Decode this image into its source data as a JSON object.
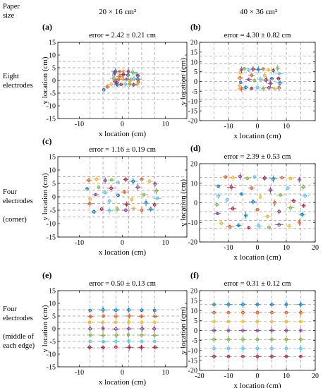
{
  "header": {
    "paper_size_label": [
      "Paper",
      "size"
    ],
    "col1": "20 × 16 cm²",
    "col2": "40 × 36 cm²"
  },
  "rows": [
    {
      "label": [
        "Eight",
        "electrodes"
      ]
    },
    {
      "label": [
        "Four",
        "electrodes",
        "",
        "(corner)"
      ]
    },
    {
      "label": [
        "Four",
        "electrodes",
        "",
        "(middle of",
        "each edge)"
      ]
    }
  ],
  "palette": [
    "#0072bd",
    "#d95319",
    "#edb120",
    "#7e2f8e",
    "#77ac30",
    "#4dbeee",
    "#a2142f"
  ],
  "chart_data": [
    {
      "type": "scatter",
      "panel": "(a)",
      "title": "error = 2.42 ± 0.21 cm",
      "xlabel": "x location (cm)",
      "ylabel": "y location (cm)",
      "xlim": [
        -15,
        15
      ],
      "ylim": [
        -15,
        15
      ],
      "xticks": [
        -10,
        0,
        10
      ],
      "yticks": [
        -15,
        -10,
        -5,
        0,
        5,
        10,
        15
      ],
      "grid_x": [
        -7.5,
        -4.5,
        -1.5,
        1.5,
        4.5,
        7.5
      ],
      "grid_y": [
        -7.5,
        -5,
        -2.5,
        0,
        2.5,
        5,
        7.5
      ],
      "points": [
        [
          -4.3,
          -3.7
        ],
        [
          -3.5,
          -2.5
        ],
        [
          -2.6,
          -1.5
        ],
        [
          -1.7,
          -0.5
        ],
        [
          -2.0,
          0.8
        ],
        [
          -2.0,
          2.0
        ],
        [
          -1.8,
          3.0
        ],
        [
          -1.6,
          3.6
        ],
        [
          -0.6,
          3.4
        ],
        [
          0.3,
          3.6
        ],
        [
          1.4,
          3.5
        ],
        [
          2.4,
          3.2
        ],
        [
          3.3,
          2.8
        ],
        [
          3.6,
          1.8
        ],
        [
          3.6,
          0.5
        ],
        [
          3.7,
          -0.6
        ],
        [
          3.4,
          -1.5
        ],
        [
          2.6,
          -1.7
        ],
        [
          1.7,
          -1.4
        ],
        [
          0.7,
          -1.5
        ],
        [
          -0.3,
          -1.6
        ],
        [
          -1.2,
          -1.7
        ],
        [
          -0.9,
          0.4
        ],
        [
          0.1,
          0.6
        ],
        [
          1.0,
          0.5
        ],
        [
          2.0,
          0.3
        ],
        [
          2.7,
          0.8
        ],
        [
          0.2,
          2.3
        ],
        [
          1.3,
          2.1
        ],
        [
          -0.6,
          1.6
        ],
        [
          1.8,
          -0.3
        ],
        [
          -1.3,
          -0.9
        ]
      ]
    },
    {
      "type": "scatter",
      "panel": "(b)",
      "title": "error = 4.30 ± 0.82 cm",
      "xlabel": "x location (cm)",
      "ylabel": "y location (cm)",
      "xlim": [
        -20,
        20
      ],
      "ylim": [
        -20,
        20
      ],
      "xticks": [
        -10,
        0,
        10
      ],
      "yticks": [
        -20,
        -15,
        -10,
        -5,
        0,
        5,
        10,
        15,
        20
      ],
      "grid_x": [
        -15,
        -10,
        -5,
        0,
        5,
        10,
        15
      ],
      "grid_y": [
        -13,
        -9,
        -4.5,
        0,
        4.5,
        9,
        13
      ],
      "points": [
        [
          -5.8,
          -0.5
        ],
        [
          -6.0,
          1.8
        ],
        [
          -5.9,
          4.5
        ],
        [
          -5.5,
          6.0
        ],
        [
          -4.5,
          6.5
        ],
        [
          -3.0,
          5.8
        ],
        [
          -1.5,
          6.3
        ],
        [
          0.3,
          6.2
        ],
        [
          2.0,
          6.4
        ],
        [
          3.8,
          5.9
        ],
        [
          5.5,
          5.6
        ],
        [
          7.0,
          6.8
        ],
        [
          7.6,
          4.0
        ],
        [
          7.3,
          1.5
        ],
        [
          7.8,
          -0.8
        ],
        [
          7.5,
          -3.2
        ],
        [
          6.0,
          -3.6
        ],
        [
          4.0,
          -3.2
        ],
        [
          2.0,
          -3.6
        ],
        [
          0.0,
          -3.1
        ],
        [
          -2.0,
          -3.5
        ],
        [
          -4.0,
          -3.0
        ],
        [
          -5.5,
          -3.8
        ],
        [
          -6.2,
          -2.3
        ],
        [
          -3.0,
          1.0
        ],
        [
          -1.0,
          0.5
        ],
        [
          1.0,
          1.2
        ],
        [
          3.0,
          0.8
        ],
        [
          5.0,
          1.5
        ],
        [
          -2.0,
          3.2
        ],
        [
          2.5,
          3.0
        ],
        [
          4.5,
          -1.0
        ]
      ]
    },
    {
      "type": "scatter",
      "panel": "(c)",
      "title": "error = 1.16 ± 0.19 cm",
      "xlabel": "x location (cm)",
      "ylabel": "y location (cm)",
      "xlim": [
        -15,
        15
      ],
      "ylim": [
        -15,
        15
      ],
      "xticks": [
        -10,
        0,
        10
      ],
      "yticks": [
        -15,
        -10,
        -5,
        0,
        5,
        10,
        15
      ],
      "grid_x": [
        -7.5,
        -4.5,
        -1.5,
        1.5,
        4.5,
        7.5
      ],
      "grid_y": [
        -7.5,
        -5,
        -2.5,
        0,
        2.5,
        5,
        7.5
      ],
      "points": [
        [
          -8.2,
          3.0
        ],
        [
          -7.8,
          6.2
        ],
        [
          -6.0,
          6.6
        ],
        [
          -4.0,
          6.1
        ],
        [
          -2.5,
          6.3
        ],
        [
          -1.0,
          5.4
        ],
        [
          0.8,
          6.5
        ],
        [
          2.5,
          5.8
        ],
        [
          4.5,
          6.6
        ],
        [
          6.3,
          5.8
        ],
        [
          7.6,
          4.8
        ],
        [
          7.9,
          2.2
        ],
        [
          8.1,
          -0.6
        ],
        [
          7.5,
          -3.0
        ],
        [
          6.6,
          -4.6
        ],
        [
          4.5,
          -5.0
        ],
        [
          2.6,
          -4.3
        ],
        [
          0.8,
          -5.0
        ],
        [
          -1.2,
          -4.6
        ],
        [
          -3.0,
          -5.1
        ],
        [
          -4.8,
          -4.6
        ],
        [
          -6.6,
          -5.6
        ],
        [
          -7.6,
          -2.6
        ],
        [
          -7.5,
          -0.8
        ],
        [
          -6.2,
          0.8
        ],
        [
          -5.5,
          3.6
        ],
        [
          -4.0,
          1.6
        ],
        [
          -2.6,
          3.2
        ],
        [
          -1.0,
          0.6
        ],
        [
          0.5,
          1.8
        ],
        [
          2.2,
          -1.0
        ],
        [
          3.6,
          3.6
        ],
        [
          5.0,
          0.8
        ],
        [
          -3.0,
          -1.6
        ],
        [
          1.0,
          -2.8
        ],
        [
          5.5,
          -2.2
        ]
      ]
    },
    {
      "type": "scatter",
      "panel": "(d)",
      "title": "error = 2.39 ± 0.53 cm",
      "xlabel": "x location (cm)",
      "ylabel": "y location (cm)",
      "xlim": [
        -20,
        20
      ],
      "ylim": [
        -20,
        20
      ],
      "xticks": [
        -10,
        0,
        10,
        20
      ],
      "yticks": [
        -20,
        -10,
        0,
        10,
        20
      ],
      "grid_x": [
        -15,
        -10,
        -5,
        0,
        5,
        10,
        15
      ],
      "grid_y": [
        -13,
        -9,
        -4.5,
        0,
        4.5,
        9,
        13
      ],
      "points": [
        [
          -13.5,
          8.5
        ],
        [
          -11.0,
          13.2
        ],
        [
          -8.5,
          12.8
        ],
        [
          -6.0,
          13.5
        ],
        [
          -3.5,
          12.5
        ],
        [
          -1.0,
          13.2
        ],
        [
          2.5,
          12.6
        ],
        [
          5.5,
          12.2
        ],
        [
          8.5,
          12.8
        ],
        [
          11.5,
          12.4
        ],
        [
          14.5,
          11.8
        ],
        [
          15.8,
          8.0
        ],
        [
          16.5,
          3.5
        ],
        [
          16.0,
          -1.5
        ],
        [
          15.5,
          -6.0
        ],
        [
          14.5,
          -10.0
        ],
        [
          11.0,
          -11.8
        ],
        [
          7.5,
          -11.2
        ],
        [
          4.0,
          -12.5
        ],
        [
          0.5,
          -11.8
        ],
        [
          -3.0,
          -12.8
        ],
        [
          -6.5,
          -11.5
        ],
        [
          -9.5,
          -12.2
        ],
        [
          -12.5,
          -10.5
        ],
        [
          -13.8,
          -5.5
        ],
        [
          -14.0,
          -1.0
        ],
        [
          -13.5,
          3.5
        ],
        [
          -9.0,
          8.0
        ],
        [
          -5.5,
          4.5
        ],
        [
          -2.0,
          7.5
        ],
        [
          1.0,
          3.0
        ],
        [
          4.5,
          6.5
        ],
        [
          8.0,
          4.0
        ],
        [
          10.5,
          7.5
        ],
        [
          -8.5,
          -3.0
        ],
        [
          -4.0,
          -6.5
        ],
        [
          0.0,
          -3.5
        ],
        [
          3.5,
          -7.0
        ],
        [
          7.5,
          -4.5
        ],
        [
          11.5,
          -2.5
        ],
        [
          -10.5,
          1.5
        ],
        [
          12.5,
          1.0
        ],
        [
          -1.5,
          0.5
        ],
        [
          6.0,
          0.0
        ]
      ]
    },
    {
      "type": "scatter",
      "panel": "(e)",
      "title": "error = 0.50 ± 0.13 cm",
      "xlabel": "x location (cm)",
      "ylabel": "y location (cm)",
      "xlim": [
        -15,
        15
      ],
      "ylim": [
        -15,
        15
      ],
      "xticks": [
        -10,
        0,
        10
      ],
      "yticks": [
        -15,
        -10,
        -5,
        0,
        5,
        10,
        15
      ],
      "grid_x": [
        -7.5,
        -4.5,
        -1.5,
        1.5,
        4.5,
        7.5
      ],
      "grid_y": [
        -7.5,
        -5,
        -2.5,
        0,
        2.5,
        5,
        7.5
      ],
      "points": [
        [
          -7.5,
          7.2
        ],
        [
          -7.4,
          4.8
        ],
        [
          -7.6,
          2.5
        ],
        [
          -7.5,
          0.0
        ],
        [
          -7.4,
          -2.5
        ],
        [
          -7.5,
          -5.0
        ],
        [
          -7.6,
          -7.3
        ],
        [
          -4.5,
          7.4
        ],
        [
          -4.4,
          5.0
        ],
        [
          -4.6,
          2.4
        ],
        [
          -4.5,
          0.1
        ],
        [
          -4.5,
          -2.6
        ],
        [
          -4.4,
          -5.1
        ],
        [
          -4.5,
          -7.4
        ],
        [
          -1.5,
          7.3
        ],
        [
          -1.5,
          4.9
        ],
        [
          -1.6,
          2.5
        ],
        [
          -1.5,
          -0.1
        ],
        [
          -1.4,
          -2.5
        ],
        [
          -1.5,
          -5.0
        ],
        [
          -1.5,
          -7.2
        ],
        [
          1.5,
          7.4
        ],
        [
          1.6,
          5.0
        ],
        [
          1.5,
          2.6
        ],
        [
          1.5,
          0.0
        ],
        [
          1.4,
          -2.4
        ],
        [
          1.5,
          -4.9
        ],
        [
          1.6,
          -7.3
        ],
        [
          4.5,
          7.3
        ],
        [
          4.4,
          4.9
        ],
        [
          4.5,
          2.5
        ],
        [
          4.6,
          0.0
        ],
        [
          4.5,
          -2.5
        ],
        [
          4.5,
          -5.0
        ],
        [
          4.4,
          -7.4
        ],
        [
          7.5,
          7.2
        ],
        [
          7.6,
          4.9
        ],
        [
          7.5,
          2.5
        ],
        [
          7.4,
          0.0
        ],
        [
          7.5,
          -2.6
        ],
        [
          7.5,
          -5.0
        ],
        [
          7.6,
          -7.3
        ]
      ]
    },
    {
      "type": "scatter",
      "panel": "(f)",
      "title": "error = 0.31 ± 0.12 cm",
      "xlabel": "x location (cm)",
      "ylabel": "y location (cm)",
      "xlim": [
        -20,
        20
      ],
      "ylim": [
        -20,
        20
      ],
      "xticks": [
        -20,
        -10,
        0,
        10,
        20
      ],
      "yticks": [
        -20,
        -15,
        -10,
        -5,
        0,
        5,
        10,
        15,
        20
      ],
      "grid_x": [
        -15,
        -10,
        -5,
        0,
        5,
        10,
        15
      ],
      "grid_y": [
        -13,
        -9,
        -4.5,
        0,
        4.5,
        9,
        13
      ],
      "points": [
        [
          -15,
          13
        ],
        [
          -15,
          9
        ],
        [
          -15,
          4.5
        ],
        [
          -15,
          0
        ],
        [
          -15,
          -4.5
        ],
        [
          -15,
          -9
        ],
        [
          -15,
          -13
        ],
        [
          -10,
          13
        ],
        [
          -10,
          9
        ],
        [
          -10,
          4.5
        ],
        [
          -10,
          0
        ],
        [
          -10,
          -4.5
        ],
        [
          -10,
          -9
        ],
        [
          -10,
          -13
        ],
        [
          -5,
          13
        ],
        [
          -5,
          9
        ],
        [
          -5,
          4.5
        ],
        [
          -5,
          0
        ],
        [
          -5,
          -4.5
        ],
        [
          -5,
          -9
        ],
        [
          -5,
          -13
        ],
        [
          0,
          13
        ],
        [
          0,
          9
        ],
        [
          0,
          4.5
        ],
        [
          0,
          0
        ],
        [
          0,
          -4.5
        ],
        [
          0,
          -9
        ],
        [
          0,
          -13
        ],
        [
          5,
          13
        ],
        [
          5,
          9
        ],
        [
          5,
          4.5
        ],
        [
          5,
          0
        ],
        [
          5,
          -4.5
        ],
        [
          5,
          -9
        ],
        [
          5,
          -13
        ],
        [
          10,
          13
        ],
        [
          10,
          9
        ],
        [
          10,
          4.5
        ],
        [
          10,
          0
        ],
        [
          10,
          -4.5
        ],
        [
          10,
          -9
        ],
        [
          10,
          -13
        ],
        [
          15,
          13
        ],
        [
          15,
          9
        ],
        [
          15,
          4.5
        ],
        [
          15,
          0
        ],
        [
          15,
          -4.5
        ],
        [
          15,
          -9
        ],
        [
          15,
          -13
        ]
      ]
    }
  ]
}
